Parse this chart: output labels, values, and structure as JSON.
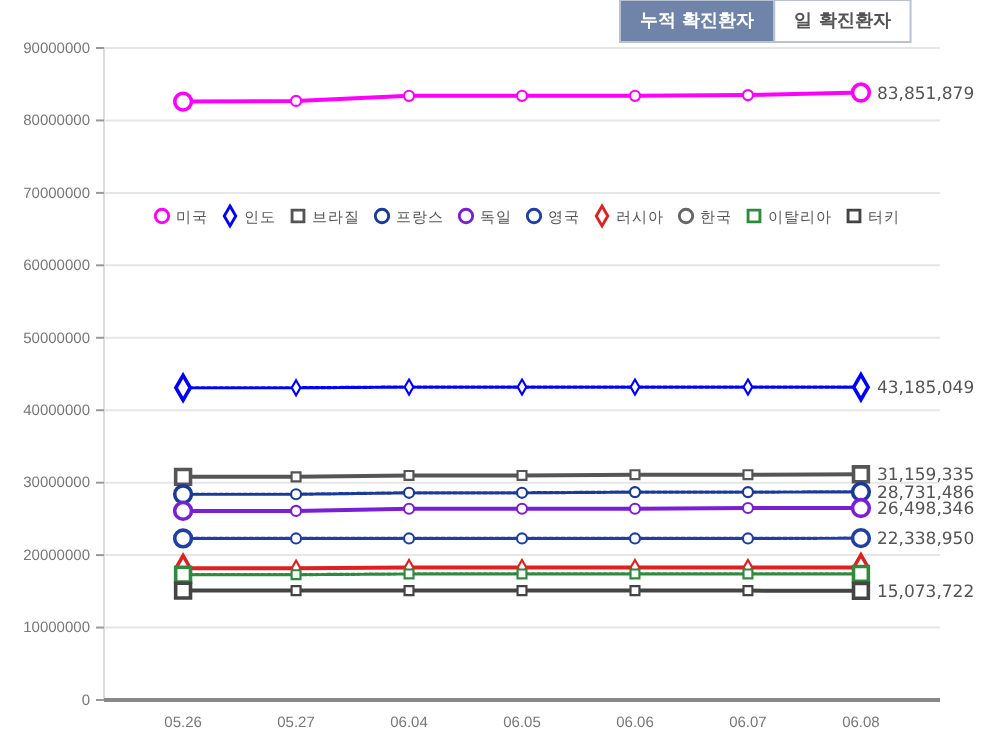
{
  "chart_data": {
    "type": "line",
    "categories": [
      "05.26",
      "05.27",
      "06.04",
      "06.05",
      "06.06",
      "06.07",
      "06.08"
    ],
    "ylim": [
      0,
      90000000
    ],
    "yticks": [
      0,
      10000000,
      20000000,
      30000000,
      40000000,
      50000000,
      60000000,
      70000000,
      80000000,
      90000000
    ],
    "grid": "y",
    "legend": "top",
    "annotations": [
      "누적 확진환자",
      "일 확진환자"
    ],
    "series": [
      {
        "name": "미국",
        "color": "#ff00ff",
        "marker": "circle",
        "line_style": "solid",
        "values": [
          82600000,
          82700000,
          83400000,
          83400000,
          83400000,
          83500000,
          83851879
        ],
        "value_labels": [
          null,
          null,
          null,
          null,
          null,
          null,
          "83,851,879"
        ]
      },
      {
        "name": "인도",
        "color": "#0000ff",
        "marker": "diamond",
        "line_style": "dotted",
        "values": [
          43100000,
          43100000,
          43200000,
          43200000,
          43200000,
          43200000,
          43185049
        ],
        "value_labels": [
          null,
          null,
          null,
          null,
          null,
          null,
          "43,185,049"
        ]
      },
      {
        "name": "브라질",
        "color": "#555555",
        "marker": "square",
        "line_style": "solid",
        "values": [
          30800000,
          30800000,
          31000000,
          31000000,
          31100000,
          31100000,
          31159335
        ],
        "value_labels": [
          null,
          null,
          null,
          null,
          null,
          null,
          "31,159,335"
        ]
      },
      {
        "name": "프랑스",
        "color": "#1a3a9a",
        "marker": "circle",
        "line_style": "dotted",
        "values": [
          28400000,
          28400000,
          28600000,
          28600000,
          28700000,
          28700000,
          28731486
        ],
        "value_labels": [
          null,
          null,
          null,
          null,
          null,
          null,
          "28,731,486"
        ]
      },
      {
        "name": "독일",
        "color": "#7a1fd6",
        "marker": "circle",
        "line_style": "solid",
        "values": [
          26100000,
          26100000,
          26400000,
          26400000,
          26400000,
          26500000,
          26498346
        ],
        "value_labels": [
          null,
          null,
          null,
          null,
          null,
          null,
          "26,498,346"
        ]
      },
      {
        "name": "영국",
        "color": "#1f3fa6",
        "marker": "circle",
        "line_style": "dotted",
        "values": [
          22300000,
          22300000,
          22300000,
          22300000,
          22300000,
          22300000,
          22338950
        ],
        "value_labels": [
          null,
          null,
          null,
          null,
          null,
          null,
          "22,338,950"
        ]
      },
      {
        "name": "러시아",
        "color": "#e02020",
        "marker": "diamond",
        "line_style": "solid",
        "values": [
          18200000,
          18200000,
          18300000,
          18300000,
          18300000,
          18300000,
          18300000
        ]
      },
      {
        "name": "한국",
        "color": "#666666",
        "marker": "circle",
        "line_style": "solid",
        "values": [
          null,
          null,
          null,
          null,
          null,
          null,
          null
        ]
      },
      {
        "name": "이탈리아",
        "color": "#2e8b3e",
        "marker": "square",
        "line_style": "dotted",
        "values": [
          17300000,
          17300000,
          17400000,
          17400000,
          17400000,
          17400000,
          17400000
        ]
      },
      {
        "name": "터키",
        "color": "#444444",
        "marker": "square",
        "line_style": "solid",
        "values": [
          15100000,
          15100000,
          15100000,
          15100000,
          15100000,
          15100000,
          15073722
        ],
        "value_labels": [
          null,
          null,
          null,
          null,
          null,
          null,
          "15,073,722"
        ]
      }
    ]
  }
}
